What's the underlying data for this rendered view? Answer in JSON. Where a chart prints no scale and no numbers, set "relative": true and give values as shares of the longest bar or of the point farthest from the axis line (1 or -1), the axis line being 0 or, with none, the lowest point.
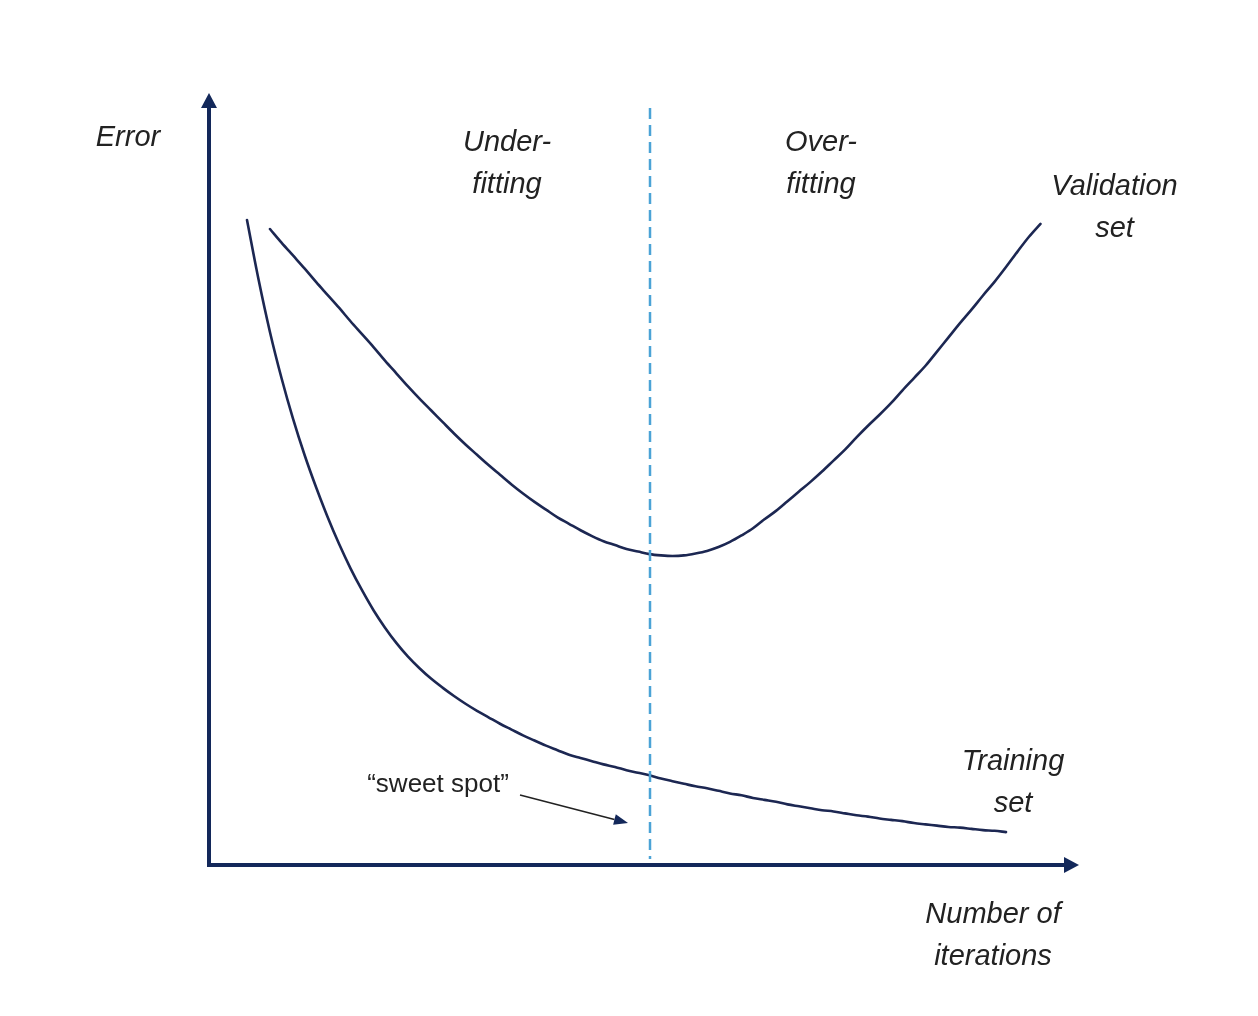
{
  "chart_data": {
    "type": "line",
    "relative": true,
    "ylabel": "Error",
    "xlabel": "Number of iterations",
    "categories": [
      null,
      null,
      null,
      null,
      null,
      null,
      null,
      null,
      null,
      null,
      null,
      null,
      null,
      null,
      null,
      null,
      null,
      null,
      null,
      null,
      null,
      null,
      null,
      null,
      null,
      null,
      null,
      null,
      null,
      null,
      null,
      null,
      null,
      null,
      null,
      null,
      null,
      null,
      null,
      null,
      null,
      null,
      null,
      null,
      null,
      null,
      null,
      null,
      null,
      null,
      null,
      null,
      null,
      null,
      null,
      null,
      null,
      null,
      null,
      null,
      null,
      null,
      null,
      null,
      null,
      null,
      null,
      null,
      null,
      null
    ],
    "series": [
      {
        "name": "Validation set",
        "color": "#1c2752",
        "values": [
          null,
          null,
          0.986,
          0.965,
          0.945,
          0.925,
          0.904,
          0.884,
          0.864,
          0.843,
          0.823,
          0.803,
          0.782,
          0.762,
          0.742,
          0.723,
          0.705,
          0.687,
          0.669,
          0.652,
          0.636,
          0.62,
          0.605,
          0.59,
          0.576,
          0.563,
          0.551,
          0.539,
          0.529,
          0.519,
          0.51,
          0.502,
          0.496,
          0.49,
          0.486,
          0.482,
          0.48,
          0.479,
          0.48,
          0.483,
          0.487,
          0.493,
          0.501,
          0.511,
          0.522,
          0.536,
          0.549,
          0.564,
          0.579,
          0.594,
          0.61,
          0.627,
          0.644,
          0.663,
          0.681,
          0.698,
          0.716,
          0.736,
          0.755,
          0.774,
          0.796,
          0.818,
          0.84,
          0.861,
          0.883,
          0.904,
          0.927,
          0.951,
          0.974,
          0.994
        ]
      },
      {
        "name": "Training set",
        "color": "#1c2752",
        "values": [
          1,
          0.908,
          0.826,
          0.755,
          0.692,
          0.636,
          0.586,
          0.54,
          0.498,
          0.46,
          0.426,
          0.395,
          0.368,
          0.344,
          0.323,
          0.305,
          0.289,
          0.275,
          0.262,
          0.25,
          0.239,
          0.229,
          0.219,
          0.21,
          0.201,
          0.193,
          0.185,
          0.178,
          0.171,
          0.166,
          0.161,
          0.156,
          0.152,
          0.147,
          0.143,
          0.139,
          0.134,
          0.13,
          0.126,
          0.122,
          0.119,
          0.115,
          0.111,
          0.108,
          0.104,
          0.101,
          0.098,
          0.094,
          0.091,
          0.088,
          0.085,
          0.083,
          0.08,
          0.077,
          0.075,
          0.072,
          0.07,
          0.068,
          0.065,
          0.063,
          0.061,
          0.059,
          0.058,
          0.056,
          0.054,
          0.053,
          0.051,
          null,
          null,
          null
        ]
      }
    ],
    "annotations": [
      "Under-fitting",
      "Over-fitting",
      "“sweet spot”"
    ],
    "grid": false,
    "legend": false,
    "tick_labels": false,
    "marker": "none",
    "line_style": "solid"
  }
}
